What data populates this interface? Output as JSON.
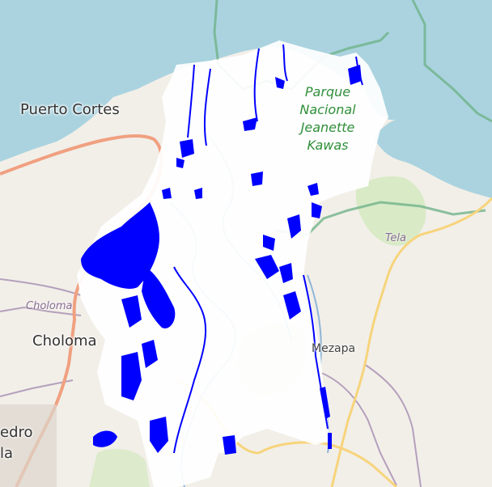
{
  "map": {
    "labels": {
      "puerto_cortes": "Puerto Cortes",
      "park_line1": "Parque",
      "park_line2": "Nacional",
      "park_line3": "Jeanette",
      "park_line4": "Kawas",
      "tela": "Tela",
      "choloma_muni": "Choloma",
      "choloma": "Choloma",
      "mezapa": "Mezapa",
      "pedro_line1": "edro",
      "pedro_line2": "la"
    },
    "colors": {
      "sea": "#aad3df",
      "land": "#f2efe9",
      "flood_overlay": "#0000ff",
      "overlay_mask": "#ffffff",
      "park_green": "#c8e6b0",
      "protected_border": "#6fb38a",
      "primary_road": "#f0a080",
      "secondary_road": "#f7d47c",
      "admin_boundary": "#a58cb0",
      "river": "#8fb5d6"
    }
  }
}
